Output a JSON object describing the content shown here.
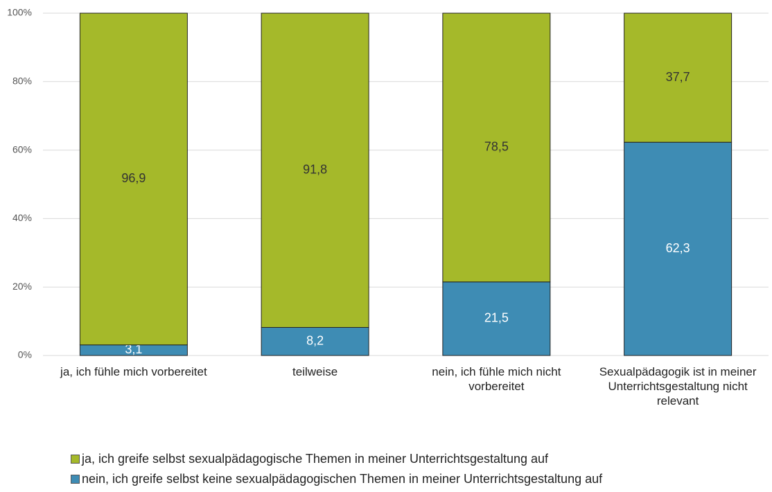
{
  "chart_data": {
    "type": "stacked_bar",
    "categories": [
      "ja, ich fühle mich vorbereitet",
      "teilweise",
      "nein, ich fühle mich nicht vorbereitet",
      "Sexualpädagogik ist in meiner Unterrichtsgestaltung nicht relevant"
    ],
    "series": [
      {
        "name": "ja, ich greife selbst sexualpädagogische Themen in meiner Unterrichtsgestaltung auf",
        "color": "#a5b92a",
        "values": [
          96.9,
          91.8,
          78.5,
          37.7
        ],
        "value_labels": [
          "96,9",
          "91,8",
          "78,5",
          "37,7"
        ]
      },
      {
        "name": "nein, ich greife selbst keine sexualpädagogischen Themen in meiner Unterrichtsgestaltung auf",
        "color": "#3e8cb4",
        "values": [
          3.1,
          8.2,
          21.5,
          62.3
        ],
        "value_labels": [
          "3,1",
          "8,2",
          "21,5",
          "62,3"
        ]
      }
    ],
    "ylim": [
      0,
      100
    ],
    "yticks": [
      {
        "value": 0,
        "label": "0%"
      },
      {
        "value": 20,
        "label": "20%"
      },
      {
        "value": 40,
        "label": "40%"
      },
      {
        "value": 60,
        "label": "60%"
      },
      {
        "value": 80,
        "label": "80%"
      },
      {
        "value": 100,
        "label": "100%"
      }
    ],
    "grid": true,
    "legend": "bottom"
  }
}
